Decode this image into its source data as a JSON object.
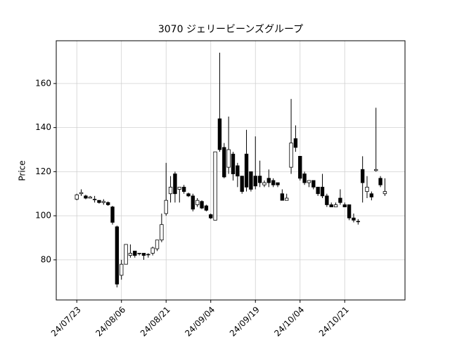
{
  "chart_data": {
    "type": "candlestick",
    "title": "3070 ジェリービーンズグループ",
    "y_label": "Price",
    "categories": [
      "24/07/23",
      null,
      null,
      null,
      null,
      null,
      null,
      null,
      null,
      null,
      "24/08/06",
      null,
      null,
      null,
      null,
      null,
      null,
      null,
      null,
      null,
      "24/08/21",
      null,
      null,
      null,
      null,
      null,
      null,
      null,
      null,
      null,
      "24/09/04",
      null,
      null,
      null,
      null,
      null,
      null,
      null,
      null,
      null,
      "24/09/19",
      null,
      null,
      null,
      null,
      null,
      null,
      null,
      null,
      null,
      "24/10/04",
      null,
      null,
      null,
      null,
      null,
      null,
      null,
      null,
      null,
      "24/10/21",
      null,
      null,
      null,
      null,
      null,
      null,
      null,
      null,
      null
    ],
    "open": [
      107.5,
      110,
      109,
      108,
      107.5,
      107,
      106,
      106,
      104,
      95,
      73,
      78,
      82,
      84,
      83,
      83,
      82.5,
      83,
      85,
      89,
      101,
      110,
      119,
      112,
      113,
      110,
      109,
      105,
      106.5,
      104.5,
      100.5,
      98,
      144,
      131,
      122,
      128,
      122.7,
      118,
      128,
      120,
      118,
      118,
      114,
      117,
      116,
      115,
      110,
      107,
      122,
      135,
      127,
      119,
      115,
      116,
      113,
      113,
      109,
      105,
      104,
      108,
      105,
      105,
      99,
      97.5,
      121,
      111,
      110,
      120.5,
      117,
      110
    ],
    "high": [
      110,
      112,
      109.5,
      109,
      109,
      107,
      107.5,
      106.5,
      104.5,
      95.5,
      80,
      87,
      87,
      84,
      83,
      83,
      83,
      86,
      89,
      101,
      124,
      118,
      120,
      113,
      114,
      110.5,
      110,
      108,
      107,
      105,
      101,
      129,
      174,
      133,
      145,
      129,
      124,
      118,
      139,
      120,
      136,
      125,
      116,
      121,
      117,
      115,
      112,
      110,
      153,
      141,
      127,
      120,
      116,
      116,
      113,
      119,
      110,
      106,
      106,
      112,
      106,
      105,
      101,
      98.5,
      127,
      118,
      111,
      149,
      118,
      117
    ],
    "low": [
      107,
      109,
      107.5,
      108,
      106,
      105.5,
      105,
      104.5,
      96,
      67.5,
      71,
      78,
      81,
      81,
      82,
      80,
      81,
      82,
      84,
      88,
      100,
      106,
      106,
      106,
      110,
      108.5,
      102,
      104,
      103,
      102,
      98.5,
      98,
      129,
      117,
      119,
      116,
      113,
      110,
      111,
      111,
      112,
      113,
      113,
      113,
      113,
      113,
      107,
      107,
      119,
      129,
      116,
      114,
      113,
      112,
      109,
      108,
      104,
      104,
      104,
      105,
      104,
      98,
      97,
      96,
      106,
      108,
      107,
      120,
      113,
      109
    ],
    "close": [
      109.5,
      110.5,
      108,
      108.5,
      107.5,
      106,
      106.5,
      105,
      97,
      69,
      78,
      87,
      83,
      82,
      83,
      82,
      82.5,
      85.4,
      89,
      96,
      107,
      113,
      110,
      113,
      111,
      109,
      103,
      107,
      103.5,
      102.5,
      99,
      129,
      130,
      117.6,
      130,
      119,
      118,
      111,
      113,
      112,
      113.5,
      115,
      115,
      115,
      114,
      114,
      107,
      108,
      133,
      131,
      117,
      115,
      116,
      113,
      110,
      109,
      105,
      104,
      105,
      106,
      104,
      99,
      98,
      97.5,
      115,
      113,
      108.5,
      121,
      114,
      111
    ],
    "up_color": "#ffffff",
    "down_color": "#000000",
    "edge_color": "#000000",
    "xlim": [
      -4.6,
      73.5
    ],
    "ylim": [
      61.8,
      179.4
    ],
    "yticks": [
      80,
      100,
      120,
      140,
      160
    ],
    "grid": true
  }
}
